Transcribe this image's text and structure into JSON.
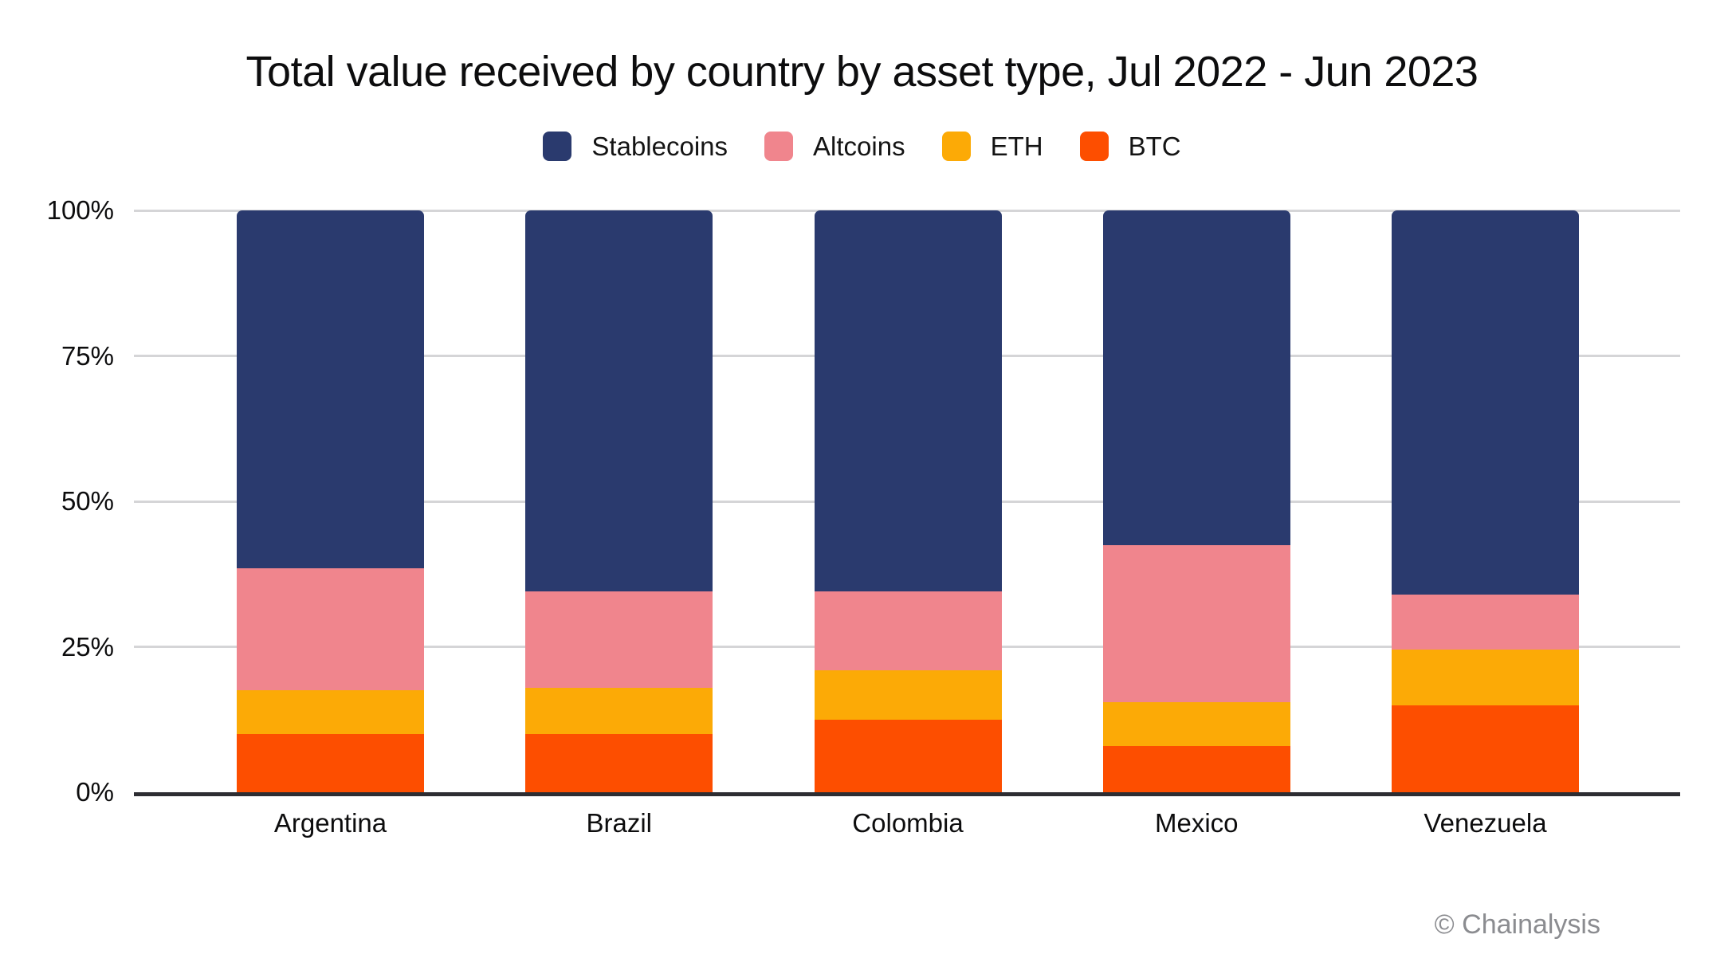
{
  "title": "Total value received by country by asset type, Jul 2022 - Jun 2023",
  "legend": {
    "items": [
      {
        "label": "Stablecoins",
        "color": "#2a3a6e"
      },
      {
        "label": "Altcoins",
        "color": "#f0858d"
      },
      {
        "label": "ETH",
        "color": "#fcaa06"
      },
      {
        "label": "BTC",
        "color": "#fd4e00"
      }
    ]
  },
  "axes": {
    "y_ticks": [
      {
        "value": 0,
        "label": "0%"
      },
      {
        "value": 25,
        "label": "25%"
      },
      {
        "value": 50,
        "label": "50%"
      },
      {
        "value": 75,
        "label": "75%"
      },
      {
        "value": 100,
        "label": "100%"
      }
    ],
    "x_labels": [
      "Argentina",
      "Brazil",
      "Colombia",
      "Mexico",
      "Venezuela"
    ]
  },
  "footer": {
    "copyright": "© Chainalysis"
  },
  "colors": {
    "grid": "#d5d5d7",
    "axis": "#2d2d32",
    "text": "#0d0d0e",
    "muted": "#8b8c90",
    "background": "#ffffff"
  },
  "chart_data": {
    "type": "bar",
    "variant": "stacked-100-percent",
    "title": "Total value received by country by asset type, Jul 2022 - Jun 2023",
    "categories": [
      "Argentina",
      "Brazil",
      "Colombia",
      "Mexico",
      "Venezuela"
    ],
    "unit": "percent",
    "ylim": [
      0,
      100
    ],
    "yticks_percent": [
      0,
      25,
      50,
      75,
      100
    ],
    "grid": true,
    "legend_position": "top",
    "series": [
      {
        "name": "BTC",
        "color": "#fd4e00",
        "values": [
          10,
          10,
          12.5,
          8,
          15
        ]
      },
      {
        "name": "ETH",
        "color": "#fcaa06",
        "values": [
          7.5,
          8,
          8.5,
          7.5,
          9.5
        ]
      },
      {
        "name": "Altcoins",
        "color": "#f0858d",
        "values": [
          21,
          16.5,
          13.5,
          27,
          9.5
        ]
      },
      {
        "name": "Stablecoins",
        "color": "#2a3a6e",
        "values": [
          61.5,
          65.5,
          65.5,
          57.5,
          66
        ]
      }
    ]
  }
}
